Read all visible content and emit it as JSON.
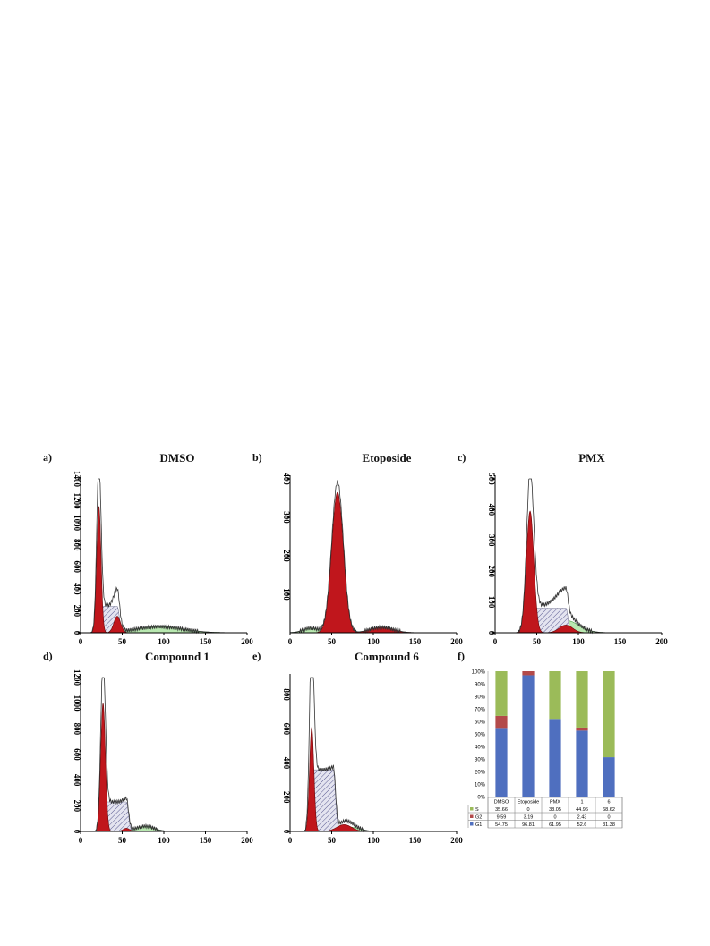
{
  "panels": [
    {
      "label": "a)",
      "title": "DMSO",
      "chart": {
        "type": "area",
        "xlim": [
          0,
          200
        ],
        "ylim": [
          0,
          1400
        ],
        "xticks": [
          0,
          50,
          100,
          150,
          200
        ],
        "yticks": [
          0,
          200,
          400,
          600,
          800,
          1000,
          1200,
          1400
        ],
        "g1": {
          "mu": 22,
          "sigma": 2.6,
          "amp": 1150
        },
        "g2": {
          "mu": 44,
          "sigma": 4.0,
          "amp": 150
        },
        "s": {
          "from": 22,
          "to": 44,
          "amp": 240
        },
        "envelope_peak": 1330,
        "tail": {
          "from": 50,
          "to": 140,
          "amp": 55
        }
      }
    },
    {
      "label": "b)",
      "title": "Etoposide",
      "chart": {
        "type": "area",
        "xlim": [
          0,
          200
        ],
        "ylim": [
          0,
          400
        ],
        "xticks": [
          0,
          50,
          100,
          150,
          200
        ],
        "yticks": [
          100,
          200,
          300,
          400
        ],
        "g1": {
          "mu": 57,
          "sigma": 7.0,
          "amp": 365
        },
        "g2": {
          "mu": 110,
          "sigma": 14.0,
          "amp": 14
        },
        "s": {
          "from": 0,
          "to": 0,
          "amp": 0
        },
        "envelope_peak": 392,
        "tail": {
          "from": 10,
          "to": 40,
          "amp": 12
        }
      }
    },
    {
      "label": "c)",
      "title": "PMX",
      "chart": {
        "type": "area",
        "xlim": [
          0,
          200
        ],
        "ylim": [
          0,
          500
        ],
        "xticks": [
          0,
          50,
          100,
          150,
          200
        ],
        "yticks": [
          0,
          100,
          200,
          300,
          400,
          500
        ],
        "g1": {
          "mu": 42,
          "sigma": 4.5,
          "amp": 395
        },
        "g2": {
          "mu": 85,
          "sigma": 8.0,
          "amp": 25
        },
        "s": {
          "from": 42,
          "to": 85,
          "amp": 80
        },
        "envelope_peak": 450,
        "tail": {
          "from": 60,
          "to": 110,
          "amp": 40
        }
      }
    },
    {
      "label": "d)",
      "title": "Compound 1",
      "chart": {
        "type": "area",
        "xlim": [
          0,
          200
        ],
        "ylim": [
          0,
          1200
        ],
        "xticks": [
          0,
          50,
          100,
          150,
          200
        ],
        "yticks": [
          0,
          200,
          400,
          600,
          800,
          1000,
          1200
        ],
        "g1": {
          "mu": 27,
          "sigma": 2.8,
          "amp": 1000
        },
        "g2": {
          "mu": 55,
          "sigma": 4.0,
          "amp": 25
        },
        "s": {
          "from": 27,
          "to": 55,
          "amp": 230
        },
        "envelope_peak": 1120,
        "tail": {
          "from": 60,
          "to": 95,
          "amp": 40
        }
      }
    },
    {
      "label": "e)",
      "title": "Compound 6",
      "chart": {
        "type": "area",
        "xlim": [
          0,
          200
        ],
        "ylim": [
          0,
          900
        ],
        "xticks": [
          0,
          50,
          100,
          150,
          200
        ],
        "yticks": [
          0,
          200,
          400,
          600,
          800
        ],
        "g1": {
          "mu": 26,
          "sigma": 2.6,
          "amp": 610
        },
        "g2": {
          "mu": 65,
          "sigma": 9.0,
          "amp": 40
        },
        "s": {
          "from": 26,
          "to": 52,
          "amp": 360
        },
        "envelope_peak": 820,
        "tail": {
          "from": 55,
          "to": 90,
          "amp": 25
        }
      }
    }
  ],
  "stacked": {
    "label": "f)",
    "chart_data": {
      "type": "bar",
      "stacked": true,
      "categories": [
        "DMSO",
        "Etoposide",
        "PMX",
        "1",
        "6"
      ],
      "yticks": [
        "0%",
        "10%",
        "20%",
        "30%",
        "40%",
        "50%",
        "60%",
        "70%",
        "80%",
        "90%",
        "100%"
      ],
      "series": [
        {
          "name": "G1",
          "color": "#4f6fbf",
          "values": [
            54.75,
            96.81,
            61.95,
            52.6,
            31.38
          ],
          "labels": [
            "54.75",
            "96.81",
            "61.95",
            "52.6",
            "31.38"
          ]
        },
        {
          "name": "G2",
          "color": "#b34a4a",
          "values": [
            9.59,
            3.19,
            0,
            2.43,
            0
          ],
          "labels": [
            "9.59",
            "3.19",
            "0",
            "2.43",
            "0"
          ]
        },
        {
          "name": "S",
          "color": "#9bbb59",
          "values": [
            35.66,
            0,
            38.05,
            44.96,
            68.62
          ],
          "labels": [
            "35.66",
            "0",
            "38.05",
            "44.96",
            "68.62"
          ]
        }
      ]
    }
  },
  "colors": {
    "g1": "#c0161c",
    "g1_stroke": "#6a0a0c",
    "s_stroke": "#7a7a96",
    "s_hatch": "#5a5a90",
    "tail": "#b8e8b0",
    "tail_stroke": "#4aa04a",
    "envelope": "#333333"
  }
}
